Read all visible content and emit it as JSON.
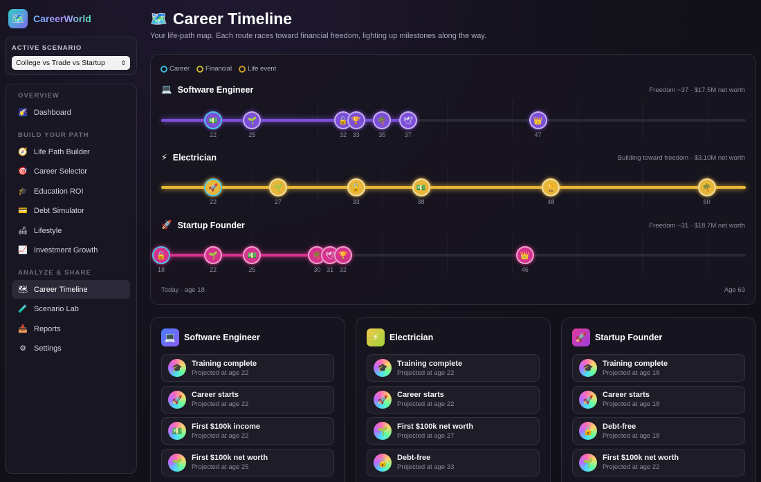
{
  "app": {
    "name": "CareerWorld",
    "logo_icon": "map-icon"
  },
  "scenario": {
    "label": "ACTIVE SCENARIO",
    "selected": "College vs Trade vs Startup"
  },
  "nav": {
    "sections": [
      {
        "label": "OVERVIEW",
        "items": [
          {
            "label": "Dashboard",
            "icon": "🌠",
            "active": false
          }
        ]
      },
      {
        "label": "BUILD YOUR PATH",
        "items": [
          {
            "label": "Life Path Builder",
            "icon": "🧭",
            "active": false
          },
          {
            "label": "Career Selector",
            "icon": "🎯",
            "active": false
          },
          {
            "label": "Education ROI",
            "icon": "🎓",
            "active": false
          },
          {
            "label": "Debt Simulator",
            "icon": "💳",
            "active": false
          },
          {
            "label": "Lifestyle",
            "icon": "🛋",
            "active": false
          },
          {
            "label": "Investment Growth",
            "icon": "📈",
            "active": false
          }
        ]
      },
      {
        "label": "ANALYZE & SHARE",
        "items": [
          {
            "label": "Career Timeline",
            "icon": "🗺",
            "active": true
          },
          {
            "label": "Scenario Lab",
            "icon": "🧪",
            "active": false
          },
          {
            "label": "Reports",
            "icon": "📥",
            "active": false
          },
          {
            "label": "Settings",
            "icon": "⚙",
            "active": false
          }
        ]
      }
    ]
  },
  "header": {
    "icon": "🗺️",
    "title": "Career Timeline",
    "subtitle": "Your life-path map. Each route races toward financial freedom, lighting up milestones along the way."
  },
  "legend": [
    {
      "label": "Career",
      "color": "#3fb4d8"
    },
    {
      "label": "Financial",
      "color": "#c9b02e"
    },
    {
      "label": "Life event",
      "color": "#c79a2e"
    }
  ],
  "timeline": {
    "age_start": 18,
    "age_end": 63,
    "start_label": "Today · age 18",
    "end_label": "Age 63",
    "tracks": [
      {
        "name": "Software Engineer",
        "icon": "💻",
        "status": "Freedom ~37 · $17.5M net worth",
        "color": "#7c4fd8",
        "progress_age": 37,
        "milestones": [
          {
            "age": 22,
            "icon": "💵",
            "age_label": "22"
          },
          {
            "age": 25,
            "icon": "🌱",
            "age_label": "25"
          },
          {
            "age": 32,
            "icon": "🔓",
            "age_label": "32"
          },
          {
            "age": 33,
            "icon": "🏆",
            "age_label": "33"
          },
          {
            "age": 35,
            "icon": "🌴",
            "age_label": "35"
          },
          {
            "age": 37,
            "icon": "🕊",
            "age_label": "37"
          },
          {
            "age": 47,
            "icon": "👑",
            "age_label": "47"
          }
        ]
      },
      {
        "name": "Electrician",
        "icon": "⚡",
        "status": "Building toward freedom · $3.10M net worth",
        "color": "#e8b73a",
        "progress_age": 63,
        "milestones": [
          {
            "age": 22,
            "icon": "🚀",
            "age_label": "22"
          },
          {
            "age": 27,
            "icon": "🌱",
            "age_label": "27"
          },
          {
            "age": 33,
            "icon": "🔓",
            "age_label": "33"
          },
          {
            "age": 38,
            "icon": "💵",
            "age_label": "38"
          },
          {
            "age": 48,
            "icon": "🏆",
            "age_label": "48"
          },
          {
            "age": 60,
            "icon": "🌴",
            "age_label": "60"
          }
        ]
      },
      {
        "name": "Startup Founder",
        "icon": "🚀",
        "status": "Freedom ~31 · $18.7M net worth",
        "color": "#d6338f",
        "progress_age": 31,
        "milestones": [
          {
            "age": 18,
            "icon": "🔓",
            "age_label": "18"
          },
          {
            "age": 22,
            "icon": "🌱",
            "age_label": "22"
          },
          {
            "age": 25,
            "icon": "💵",
            "age_label": "25"
          },
          {
            "age": 30,
            "icon": "🌴",
            "age_label": "30"
          },
          {
            "age": 31,
            "icon": "🕊",
            "age_label": "31"
          },
          {
            "age": 32,
            "icon": "🏆",
            "age_label": "32"
          },
          {
            "age": 46,
            "icon": "👑",
            "age_label": "46"
          }
        ]
      }
    ]
  },
  "cards": [
    {
      "name": "Software Engineer",
      "icon": "💻",
      "icon_bg": "linear-gradient(135deg,#4a7dff,#8b5cf6)",
      "milestones": [
        {
          "title": "Training complete",
          "sub": "Projected at age 22",
          "icon": "🎓"
        },
        {
          "title": "Career starts",
          "sub": "Projected at age 22",
          "icon": "🚀"
        },
        {
          "title": "First $100k income",
          "sub": "Projected at age 22",
          "icon": "💵"
        },
        {
          "title": "First $100k net worth",
          "sub": "Projected at age 25",
          "icon": "🌱"
        }
      ]
    },
    {
      "name": "Electrician",
      "icon": "⚡",
      "icon_bg": "linear-gradient(135deg,#f2c84b,#9ed33a)",
      "milestones": [
        {
          "title": "Training complete",
          "sub": "Projected at age 22",
          "icon": "🎓"
        },
        {
          "title": "Career starts",
          "sub": "Projected at age 22",
          "icon": "🚀"
        },
        {
          "title": "First $100k net worth",
          "sub": "Projected at age 27",
          "icon": "🌱"
        },
        {
          "title": "Debt-free",
          "sub": "Projected at age 33",
          "icon": "🔓"
        }
      ]
    },
    {
      "name": "Startup Founder",
      "icon": "🚀",
      "icon_bg": "linear-gradient(135deg,#e0399a,#9b3fe0)",
      "milestones": [
        {
          "title": "Training complete",
          "sub": "Projected at age 18",
          "icon": "🎓"
        },
        {
          "title": "Career starts",
          "sub": "Projected at age 18",
          "icon": "🚀"
        },
        {
          "title": "Debt-free",
          "sub": "Projected at age 18",
          "icon": "🔓"
        },
        {
          "title": "First $100k net worth",
          "sub": "Projected at age 22",
          "icon": "🌱"
        }
      ]
    }
  ]
}
